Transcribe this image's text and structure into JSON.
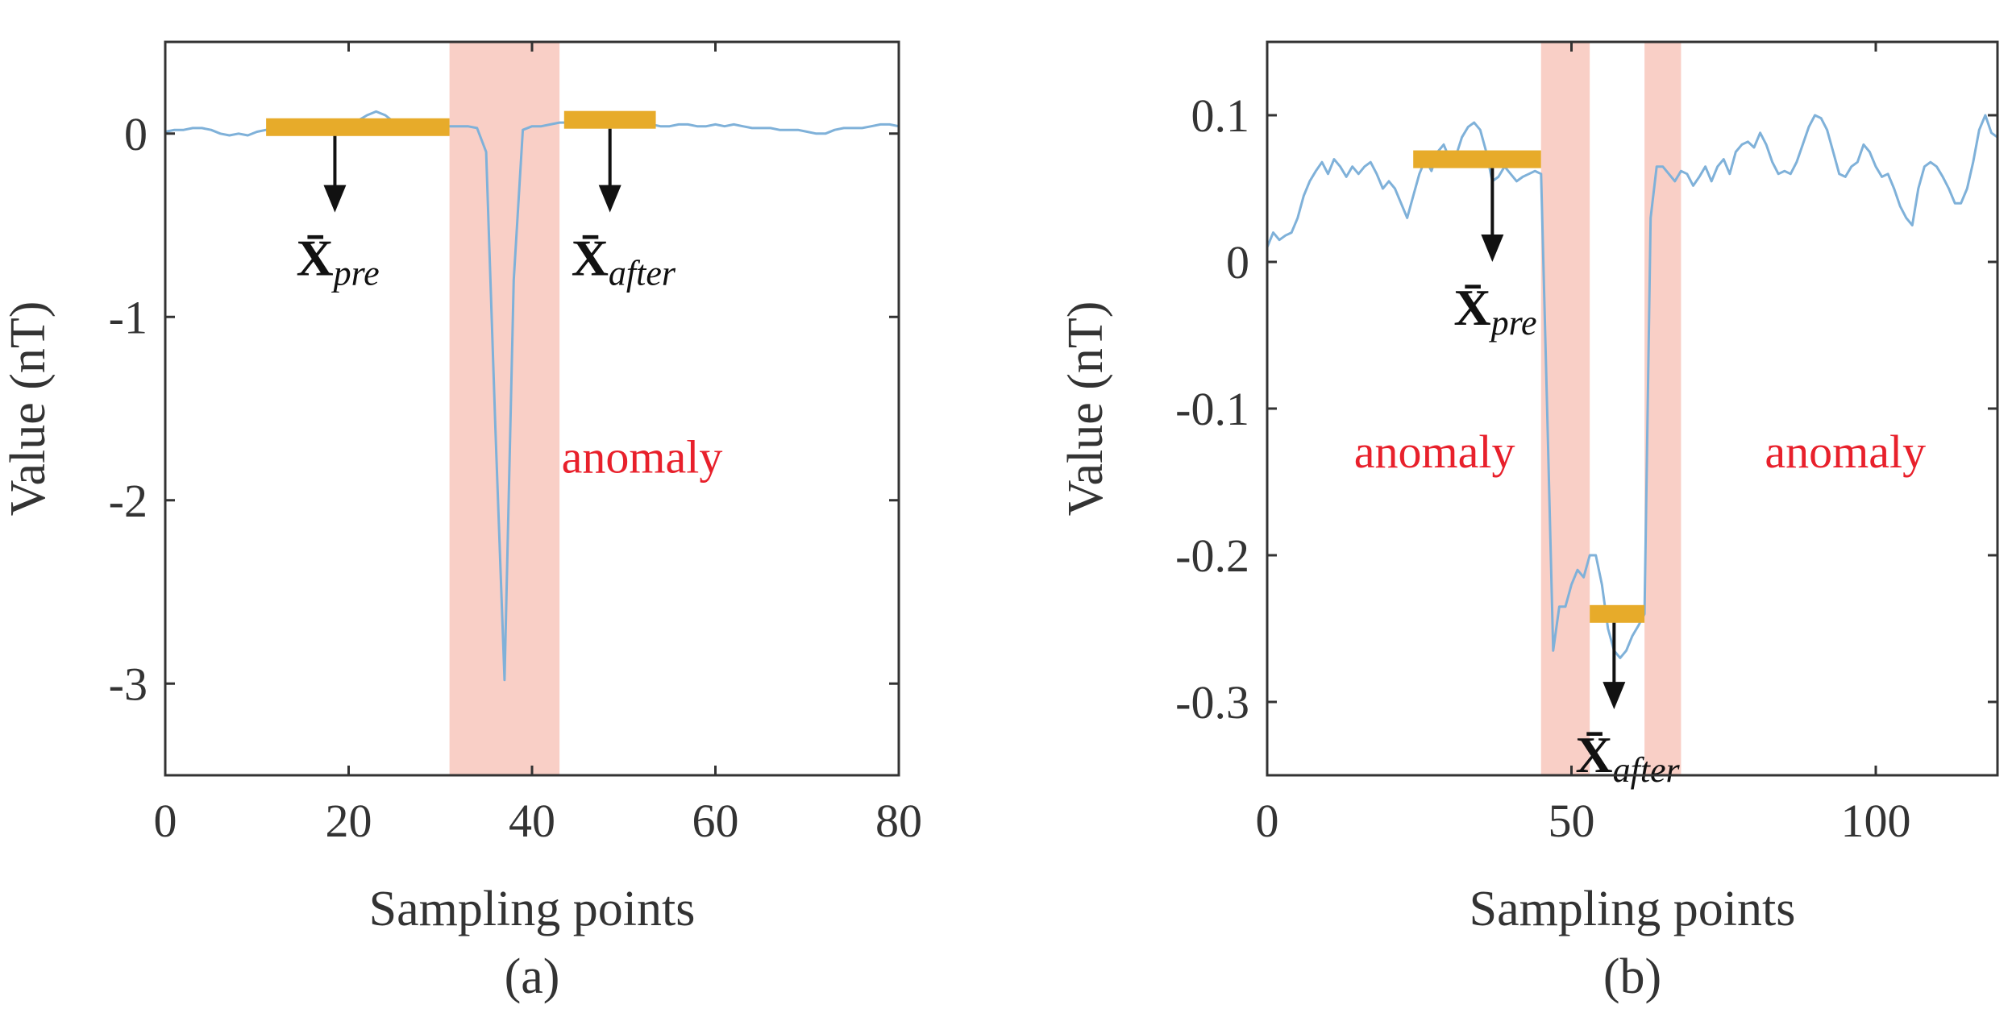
{
  "colors": {
    "line": "#7fb1d9",
    "band": "#f9cfc6",
    "marker": "#e7ab2a",
    "arrow": "#111111",
    "axis": "#333333",
    "annotation": "#e8202b"
  },
  "chart_data": [
    {
      "id": "a",
      "type": "line",
      "caption": "(a)",
      "xlabel": "Sampling points",
      "ylabel": "Value (nT)",
      "xlim": [
        0,
        80
      ],
      "ylim": [
        -3.5,
        0.5
      ],
      "xticks": [
        0,
        20,
        40,
        60,
        80
      ],
      "xtick_labels": [
        "0",
        "20",
        "40",
        "60",
        "80"
      ],
      "yticks": [
        0,
        -1,
        -2,
        -3
      ],
      "ytick_labels": [
        "0",
        "-1",
        "-2",
        "-3"
      ],
      "series": [
        {
          "name": "signal",
          "x": [
            0,
            1,
            2,
            3,
            4,
            5,
            6,
            7,
            8,
            9,
            10,
            11,
            12,
            13,
            14,
            15,
            16,
            17,
            18,
            19,
            20,
            21,
            22,
            23,
            24,
            25,
            26,
            27,
            28,
            29,
            30,
            31,
            32,
            33,
            34,
            35,
            36,
            37,
            38,
            39,
            40,
            41,
            42,
            43,
            44,
            45,
            46,
            47,
            48,
            49,
            50,
            51,
            52,
            53,
            54,
            55,
            56,
            57,
            58,
            59,
            60,
            61,
            62,
            63,
            64,
            65,
            66,
            67,
            68,
            69,
            70,
            71,
            72,
            73,
            74,
            75,
            76,
            77,
            78,
            79,
            80
          ],
          "y": [
            0.01,
            0.02,
            0.02,
            0.03,
            0.03,
            0.02,
            0.0,
            -0.01,
            0.0,
            -0.01,
            0.01,
            0.02,
            0.03,
            0.05,
            0.06,
            0.05,
            0.04,
            0.04,
            0.05,
            0.06,
            0.05,
            0.07,
            0.1,
            0.12,
            0.1,
            0.06,
            0.04,
            0.04,
            0.03,
            0.03,
            0.04,
            0.04,
            0.04,
            0.04,
            0.03,
            -0.1,
            -1.6,
            -2.98,
            -0.8,
            0.02,
            0.04,
            0.04,
            0.05,
            0.06,
            0.06,
            0.05,
            0.07,
            0.06,
            0.05,
            0.06,
            0.07,
            0.06,
            0.05,
            0.05,
            0.04,
            0.04,
            0.05,
            0.05,
            0.04,
            0.04,
            0.05,
            0.04,
            0.05,
            0.04,
            0.03,
            0.03,
            0.03,
            0.02,
            0.02,
            0.02,
            0.01,
            0.0,
            0.0,
            0.02,
            0.03,
            0.03,
            0.03,
            0.04,
            0.05,
            0.05,
            0.04
          ]
        }
      ],
      "bands": [
        [
          31,
          43
        ]
      ],
      "markers": [
        {
          "x0": 11,
          "x1": 31,
          "y": 0.035,
          "arrow_x": 18.5,
          "arrow_to": -0.43,
          "label": "X̄",
          "sub": "pre"
        },
        {
          "x0": 43.5,
          "x1": 53.5,
          "y": 0.075,
          "arrow_x": 48.5,
          "arrow_to": -0.43,
          "label": "X̄",
          "sub": "after"
        }
      ],
      "annotations": [
        {
          "text": "anomaly",
          "x": 52,
          "y": -1.85
        }
      ]
    },
    {
      "id": "b",
      "type": "line",
      "caption": "(b)",
      "xlabel": "Sampling points",
      "ylabel": "Value (nT)",
      "xlim": [
        0,
        120
      ],
      "ylim": [
        -0.35,
        0.15
      ],
      "xticks": [
        0,
        50,
        100
      ],
      "xtick_labels": [
        "0",
        "50",
        "100"
      ],
      "yticks": [
        0.1,
        0,
        -0.1,
        -0.2,
        -0.3
      ],
      "ytick_labels": [
        "0.1",
        "0",
        "-0.1",
        "-0.2",
        "-0.3"
      ],
      "series": [
        {
          "name": "signal",
          "x": [
            0,
            1,
            2,
            3,
            4,
            5,
            6,
            7,
            8,
            9,
            10,
            11,
            12,
            13,
            14,
            15,
            16,
            17,
            18,
            19,
            20,
            21,
            22,
            23,
            24,
            25,
            26,
            27,
            28,
            29,
            30,
            31,
            32,
            33,
            34,
            35,
            36,
            37,
            38,
            39,
            40,
            41,
            42,
            43,
            44,
            45,
            46,
            47,
            48,
            49,
            50,
            51,
            52,
            53,
            54,
            55,
            56,
            57,
            58,
            59,
            60,
            61,
            62,
            63,
            64,
            65,
            66,
            67,
            68,
            69,
            70,
            71,
            72,
            73,
            74,
            75,
            76,
            77,
            78,
            79,
            80,
            81,
            82,
            83,
            84,
            85,
            86,
            87,
            88,
            89,
            90,
            91,
            92,
            93,
            94,
            95,
            96,
            97,
            98,
            99,
            100,
            101,
            102,
            103,
            104,
            105,
            106,
            107,
            108,
            109,
            110,
            111,
            112,
            113,
            114,
            115,
            116,
            117,
            118,
            119,
            120
          ],
          "y": [
            0.01,
            0.02,
            0.015,
            0.018,
            0.02,
            0.03,
            0.045,
            0.055,
            0.062,
            0.068,
            0.06,
            0.07,
            0.065,
            0.058,
            0.065,
            0.06,
            0.065,
            0.068,
            0.06,
            0.05,
            0.055,
            0.05,
            0.04,
            0.03,
            0.045,
            0.06,
            0.07,
            0.062,
            0.075,
            0.08,
            0.07,
            0.072,
            0.085,
            0.092,
            0.095,
            0.09,
            0.075,
            0.055,
            0.058,
            0.065,
            0.06,
            0.055,
            0.058,
            0.06,
            0.062,
            0.06,
            -0.1,
            -0.265,
            -0.235,
            -0.235,
            -0.22,
            -0.21,
            -0.215,
            -0.2,
            -0.2,
            -0.22,
            -0.25,
            -0.265,
            -0.27,
            -0.265,
            -0.255,
            -0.248,
            -0.24,
            0.03,
            0.065,
            0.065,
            0.06,
            0.055,
            0.062,
            0.06,
            0.052,
            0.058,
            0.065,
            0.055,
            0.065,
            0.07,
            0.06,
            0.075,
            0.08,
            0.082,
            0.078,
            0.088,
            0.08,
            0.068,
            0.06,
            0.062,
            0.06,
            0.068,
            0.08,
            0.092,
            0.1,
            0.098,
            0.09,
            0.075,
            0.06,
            0.058,
            0.065,
            0.068,
            0.08,
            0.075,
            0.065,
            0.058,
            0.06,
            0.05,
            0.038,
            0.03,
            0.025,
            0.05,
            0.065,
            0.068,
            0.065,
            0.058,
            0.05,
            0.04,
            0.04,
            0.05,
            0.068,
            0.09,
            0.1,
            0.088,
            0.085
          ]
        }
      ],
      "bands": [
        [
          45,
          53
        ],
        [
          62,
          68
        ]
      ],
      "markers": [
        {
          "x0": 24,
          "x1": 45,
          "y": 0.07,
          "arrow_x": 37,
          "arrow_to": 0.0,
          "label": "X̄",
          "sub": "pre"
        },
        {
          "x0": 53,
          "x1": 62,
          "y": -0.24,
          "arrow_x": 57,
          "arrow_to": -0.305,
          "label": "X̄",
          "sub": "after"
        }
      ],
      "annotations": [
        {
          "text": "anomaly",
          "x": 27.5,
          "y": -0.14
        },
        {
          "text": "anomaly",
          "x": 95,
          "y": -0.14
        }
      ]
    }
  ]
}
